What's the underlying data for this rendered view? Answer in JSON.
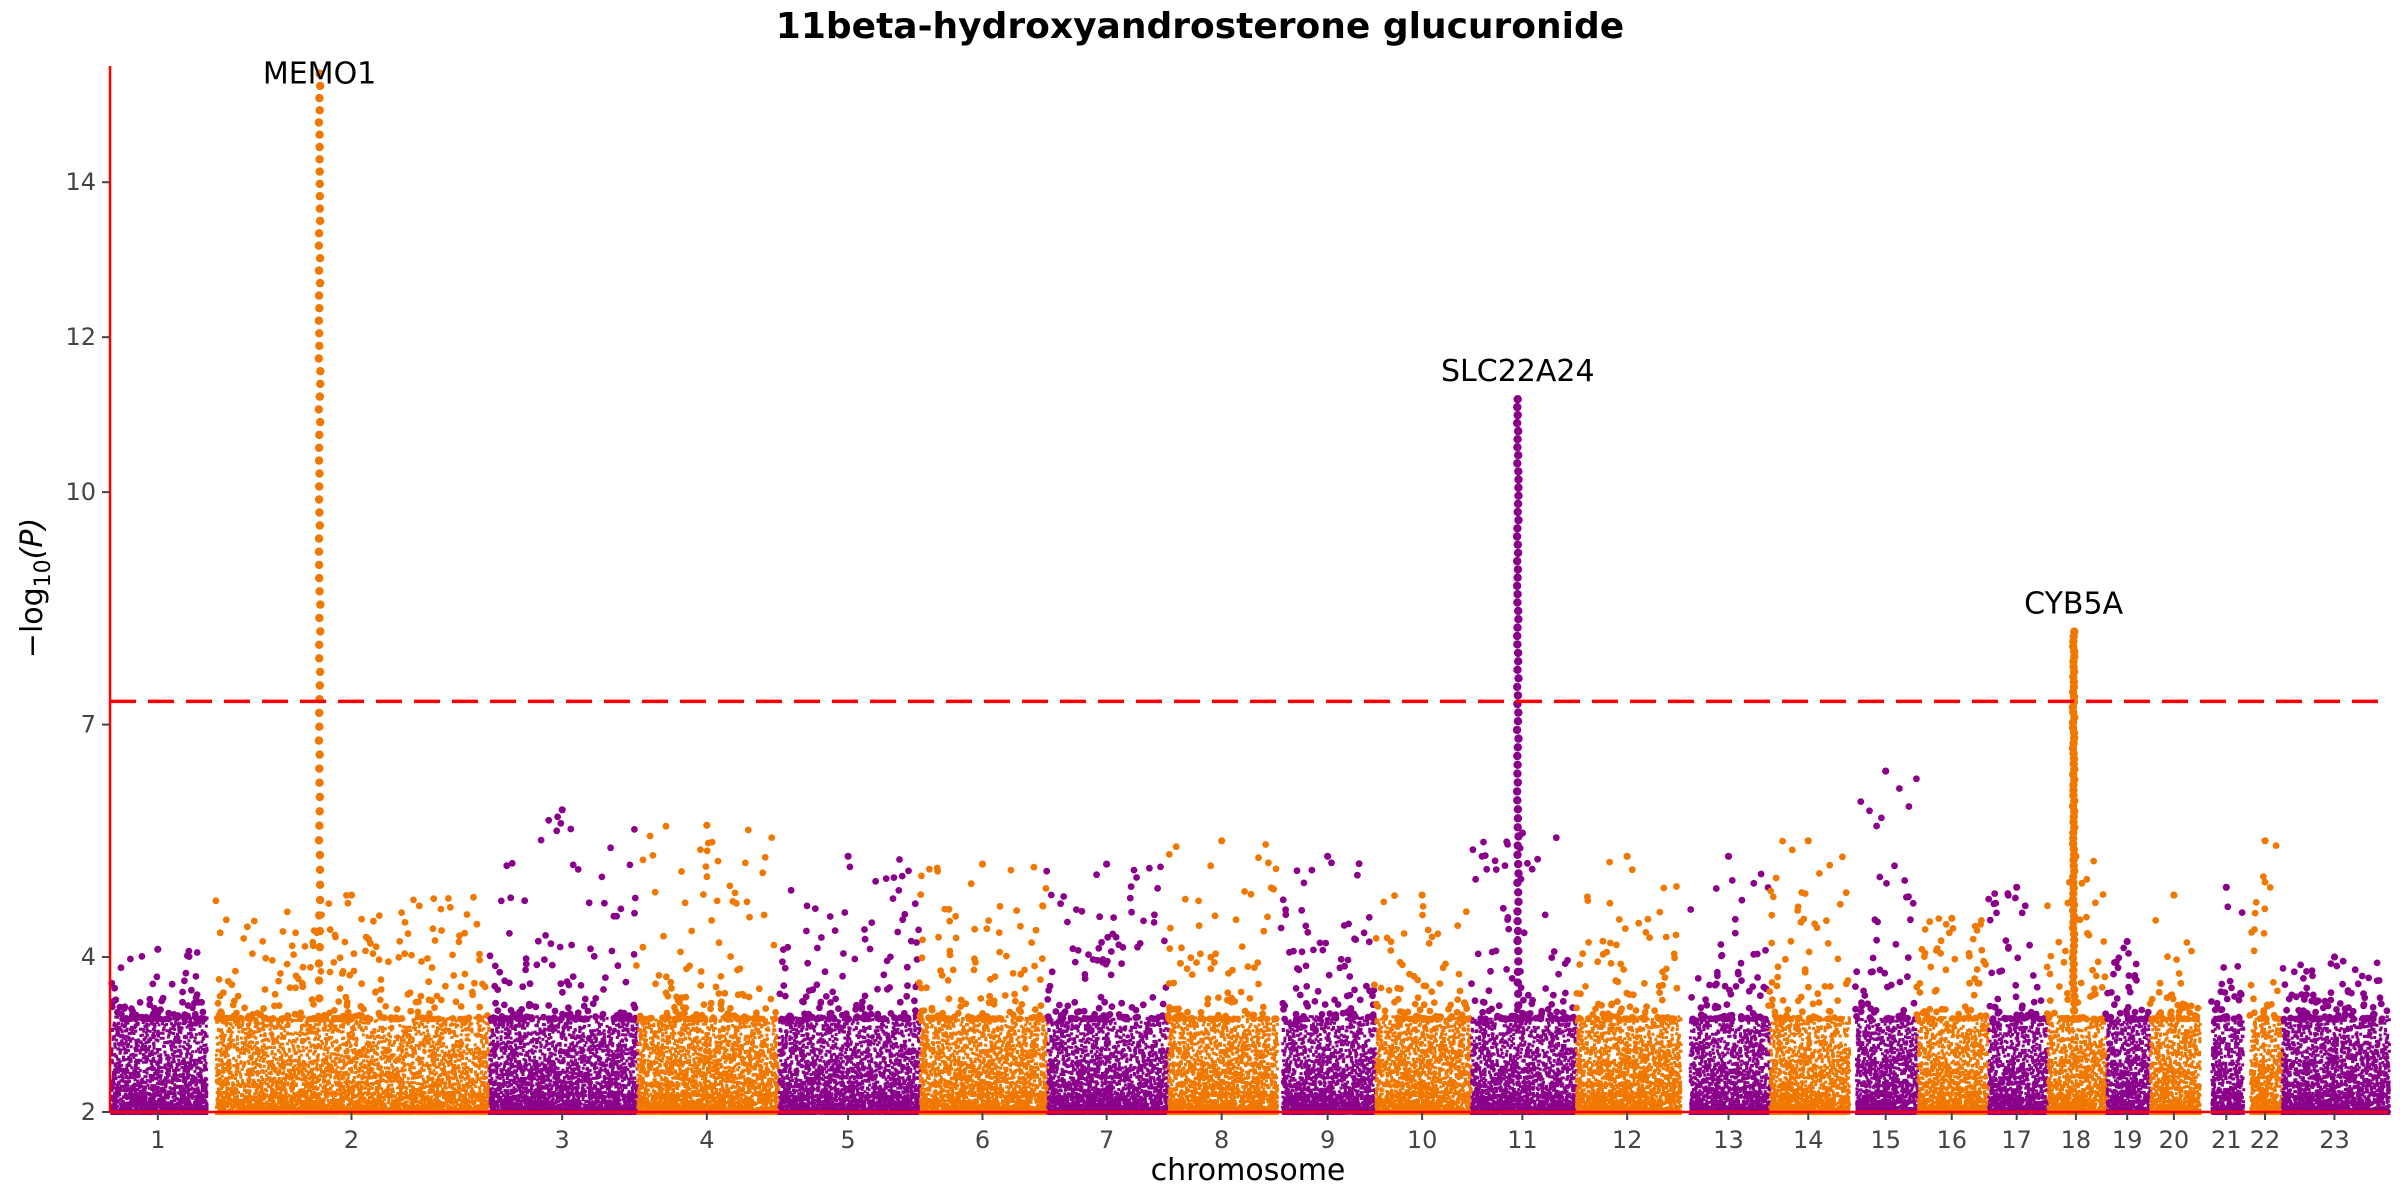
{
  "chart_data": {
    "type": "scatter",
    "title": "11beta-hydroxyandrosterone glucuronide",
    "xlabel": "chromosome",
    "ylabel_base": "−log",
    "ylabel_sub": "10",
    "ylabel_arg": "(P)",
    "ylim": [
      2,
      15.5
    ],
    "yticks": [
      2,
      4,
      7,
      10,
      12,
      14
    ],
    "colors": {
      "odd": "#8b008b",
      "even": "#f07800",
      "threshold": "#ff0000",
      "axis": "#ff0000"
    },
    "threshold": 7.3,
    "chromosomes": [
      {
        "label": "1",
        "start": 0.0,
        "end": 4.2,
        "peak": 4.1
      },
      {
        "label": "2",
        "start": 4.6,
        "end": 16.6,
        "peak": 4.8
      },
      {
        "label": "3",
        "start": 16.6,
        "end": 23.1,
        "peak": 5.9
      },
      {
        "label": "4",
        "start": 23.1,
        "end": 29.3,
        "peak": 5.7
      },
      {
        "label": "5",
        "start": 29.3,
        "end": 35.5,
        "peak": 5.3
      },
      {
        "label": "6",
        "start": 35.5,
        "end": 41.1,
        "peak": 5.2
      },
      {
        "label": "7",
        "start": 41.1,
        "end": 46.4,
        "peak": 5.2
      },
      {
        "label": "8",
        "start": 46.4,
        "end": 51.2,
        "peak": 5.5
      },
      {
        "label": "9",
        "start": 51.4,
        "end": 55.5,
        "peak": 5.3
      },
      {
        "label": "10",
        "start": 55.5,
        "end": 59.7,
        "peak": 4.8
      },
      {
        "label": "11",
        "start": 59.7,
        "end": 64.3,
        "peak": 5.6
      },
      {
        "label": "12",
        "start": 64.3,
        "end": 68.9,
        "peak": 5.3
      },
      {
        "label": "13",
        "start": 69.3,
        "end": 72.8,
        "peak": 5.3
      },
      {
        "label": "14",
        "start": 72.8,
        "end": 76.3,
        "peak": 5.5
      },
      {
        "label": "15",
        "start": 76.6,
        "end": 79.3,
        "peak": 6.4
      },
      {
        "label": "16",
        "start": 79.3,
        "end": 82.4,
        "peak": 4.5
      },
      {
        "label": "17",
        "start": 82.4,
        "end": 85.0,
        "peak": 4.9
      },
      {
        "label": "18",
        "start": 85.0,
        "end": 87.6,
        "peak": 5.3
      },
      {
        "label": "19",
        "start": 87.6,
        "end": 89.5,
        "peak": 4.2
      },
      {
        "label": "20",
        "start": 89.5,
        "end": 91.7,
        "peak": 4.8
      },
      {
        "label": "21",
        "start": 92.2,
        "end": 93.6,
        "peak": 4.9
      },
      {
        "label": "22",
        "start": 93.9,
        "end": 95.3,
        "peak": 5.5
      },
      {
        "label": "23",
        "start": 95.3,
        "end": 100.0,
        "peak": 4.0
      }
    ],
    "hits": [
      {
        "gene": "MEMO1",
        "chrom_index": 1,
        "pos": 9.2,
        "max": 15.4
      },
      {
        "gene": "SLC22A24",
        "chrom_index": 10,
        "pos": 61.8,
        "max": 11.2
      },
      {
        "gene": "CYB5A",
        "chrom_index": 17,
        "pos": 86.2,
        "max": 8.2
      }
    ]
  }
}
